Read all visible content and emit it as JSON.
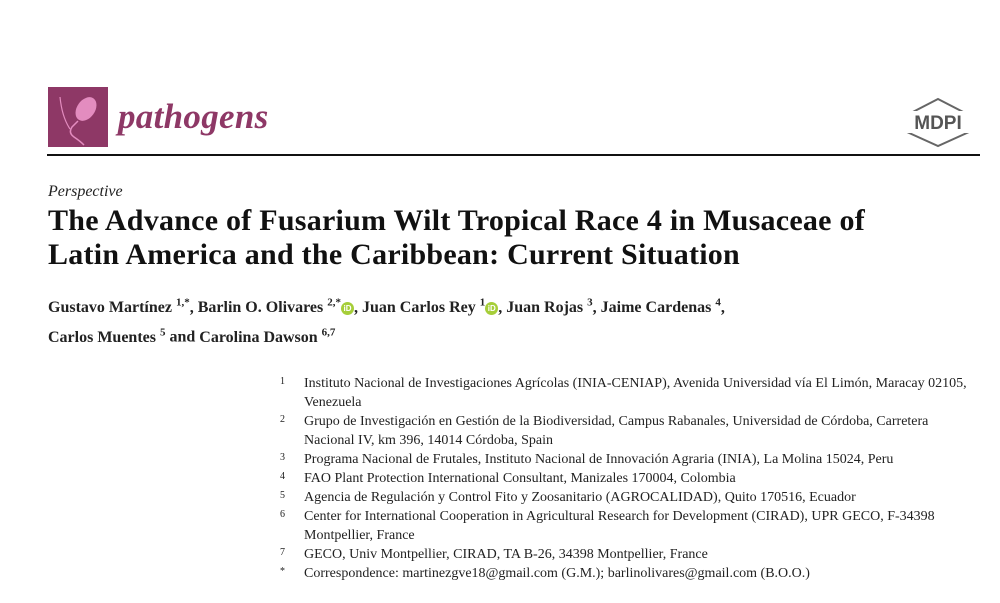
{
  "journal": {
    "name": "pathogens",
    "publisher": "MDPI",
    "brand_color": "#8e3866"
  },
  "article": {
    "type": "Perspective",
    "title_line1": "The Advance of Fusarium Wilt Tropical Race 4 in Musaceae of",
    "title_line2": "Latin America and the Caribbean: Current Situation"
  },
  "authors": [
    {
      "name": "Gustavo Martínez",
      "sup": "1,*",
      "orcid": false
    },
    {
      "name": "Barlin O. Olivares",
      "sup": "2,*",
      "orcid": true
    },
    {
      "name": "Juan Carlos Rey",
      "sup": "1",
      "orcid": true
    },
    {
      "name": "Juan Rojas",
      "sup": "3",
      "orcid": false
    },
    {
      "name": "Jaime Cardenas",
      "sup": "4",
      "orcid": false
    },
    {
      "name": "Carlos Muentes",
      "sup": "5",
      "orcid": false
    },
    {
      "name": "Carolina Dawson",
      "sup": "6,7",
      "orcid": false
    }
  ],
  "authors_conj": "and",
  "orcid_label": "iD",
  "affiliations": [
    {
      "n": "1",
      "text": "Instituto Nacional de Investigaciones Agrícolas (INIA-CENIAP), Avenida Universidad vía El Limón, Maracay 02105, Venezuela"
    },
    {
      "n": "2",
      "text": "Grupo de Investigación en Gestión de la Biodiversidad, Campus Rabanales, Universidad de Córdoba, Carretera Nacional IV, km 396, 14014 Córdoba, Spain"
    },
    {
      "n": "3",
      "text": "Programa Nacional de Frutales, Instituto Nacional de Innovación Agraria (INIA), La Molina 15024, Peru"
    },
    {
      "n": "4",
      "text": "FAO Plant Protection International Consultant, Manizales 170004, Colombia"
    },
    {
      "n": "5",
      "text": "Agencia de Regulación y Control Fito y Zoosanitario (AGROCALIDAD), Quito 170516, Ecuador"
    },
    {
      "n": "6",
      "text": "Center for International Cooperation in Agricultural Research for Development (CIRAD), UPR GECO, F-34398 Montpellier, France"
    },
    {
      "n": "7",
      "text": "GECO, Univ Montpellier, CIRAD, TA B-26, 34398 Montpellier, France"
    },
    {
      "n": "*",
      "text": "Correspondence: martinezgve18@gmail.com (G.M.); barlinolivares@gmail.com (B.O.O.)"
    }
  ]
}
